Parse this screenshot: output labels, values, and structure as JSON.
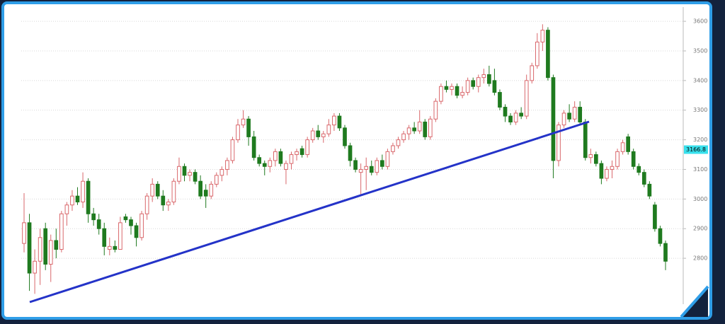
{
  "chart_data": {
    "type": "candlestick",
    "ylim": [
      2645,
      3648
    ],
    "yticks": [
      2800,
      2900,
      3000,
      3100,
      3200,
      3300,
      3400,
      3500,
      3600
    ],
    "grid": true,
    "up_color": "#d9676b",
    "down_color": "#1f7a1f",
    "last_price": 3166.8,
    "last_price_color": "#38e0ec",
    "ohlc": [
      [
        2850,
        3020,
        2820,
        2920
      ],
      [
        2920,
        2950,
        2690,
        2750
      ],
      [
        2750,
        2830,
        2680,
        2790
      ],
      [
        2790,
        2900,
        2710,
        2870
      ],
      [
        2900,
        2920,
        2760,
        2780
      ],
      [
        2780,
        2880,
        2720,
        2860
      ],
      [
        2860,
        2900,
        2800,
        2830
      ],
      [
        2830,
        2960,
        2820,
        2950
      ],
      [
        2950,
        2990,
        2910,
        2980
      ],
      [
        2980,
        3030,
        2960,
        3010
      ],
      [
        3010,
        3040,
        2980,
        2990
      ],
      [
        2990,
        3090,
        2970,
        3060
      ],
      [
        3060,
        3070,
        2920,
        2950
      ],
      [
        2950,
        2970,
        2910,
        2930
      ],
      [
        2930,
        2950,
        2880,
        2900
      ],
      [
        2900,
        2920,
        2810,
        2840
      ],
      [
        2830,
        2870,
        2810,
        2840
      ],
      [
        2840,
        2860,
        2820,
        2830
      ],
      [
        2830,
        2940,
        2830,
        2920
      ],
      [
        2940,
        2950,
        2920,
        2930
      ],
      [
        2930,
        2940,
        2880,
        2910
      ],
      [
        2910,
        2920,
        2840,
        2870
      ],
      [
        2870,
        2960,
        2860,
        2950
      ],
      [
        2950,
        3020,
        2930,
        3010
      ],
      [
        3010,
        3070,
        2990,
        3050
      ],
      [
        3050,
        3060,
        3000,
        3010
      ],
      [
        3010,
        3030,
        2960,
        2980
      ],
      [
        2980,
        3000,
        2960,
        2990
      ],
      [
        2990,
        3070,
        2980,
        3060
      ],
      [
        3060,
        3140,
        3050,
        3110
      ],
      [
        3110,
        3120,
        3060,
        3080
      ],
      [
        3080,
        3100,
        3060,
        3090
      ],
      [
        3090,
        3100,
        3050,
        3060
      ],
      [
        3060,
        3080,
        3000,
        3010
      ],
      [
        3030,
        3050,
        2970,
        3010
      ],
      [
        3010,
        3060,
        3000,
        3050
      ],
      [
        3050,
        3090,
        3040,
        3080
      ],
      [
        3080,
        3110,
        3060,
        3100
      ],
      [
        3100,
        3140,
        3080,
        3130
      ],
      [
        3130,
        3210,
        3120,
        3200
      ],
      [
        3200,
        3270,
        3190,
        3250
      ],
      [
        3250,
        3300,
        3240,
        3270
      ],
      [
        3270,
        3280,
        3180,
        3210
      ],
      [
        3210,
        3230,
        3130,
        3140
      ],
      [
        3140,
        3150,
        3110,
        3120
      ],
      [
        3120,
        3130,
        3080,
        3110
      ],
      [
        3110,
        3140,
        3090,
        3130
      ],
      [
        3130,
        3170,
        3110,
        3160
      ],
      [
        3160,
        3170,
        3110,
        3120
      ],
      [
        3100,
        3130,
        3050,
        3120
      ],
      [
        3120,
        3160,
        3100,
        3150
      ],
      [
        3150,
        3170,
        3130,
        3160
      ],
      [
        3170,
        3180,
        3140,
        3150
      ],
      [
        3150,
        3210,
        3140,
        3200
      ],
      [
        3200,
        3240,
        3190,
        3230
      ],
      [
        3230,
        3250,
        3200,
        3210
      ],
      [
        3210,
        3230,
        3190,
        3220
      ],
      [
        3220,
        3270,
        3210,
        3250
      ],
      [
        3250,
        3290,
        3230,
        3280
      ],
      [
        3280,
        3290,
        3230,
        3240
      ],
      [
        3240,
        3250,
        3170,
        3180
      ],
      [
        3180,
        3190,
        3110,
        3130
      ],
      [
        3130,
        3140,
        3090,
        3100
      ],
      [
        3090,
        3120,
        3010,
        3100
      ],
      [
        3100,
        3140,
        3030,
        3110
      ],
      [
        3110,
        3130,
        3080,
        3090
      ],
      [
        3090,
        3140,
        3080,
        3130
      ],
      [
        3130,
        3150,
        3100,
        3110
      ],
      [
        3110,
        3170,
        3100,
        3160
      ],
      [
        3160,
        3190,
        3150,
        3180
      ],
      [
        3180,
        3210,
        3170,
        3200
      ],
      [
        3200,
        3230,
        3190,
        3220
      ],
      [
        3220,
        3250,
        3200,
        3240
      ],
      [
        3240,
        3260,
        3220,
        3230
      ],
      [
        3230,
        3300,
        3220,
        3260
      ],
      [
        3260,
        3270,
        3200,
        3210
      ],
      [
        3210,
        3280,
        3200,
        3270
      ],
      [
        3270,
        3340,
        3260,
        3330
      ],
      [
        3330,
        3390,
        3320,
        3380
      ],
      [
        3380,
        3400,
        3360,
        3370
      ],
      [
        3370,
        3390,
        3350,
        3380
      ],
      [
        3380,
        3390,
        3340,
        3350
      ],
      [
        3350,
        3380,
        3340,
        3360
      ],
      [
        3360,
        3410,
        3350,
        3400
      ],
      [
        3400,
        3410,
        3370,
        3380
      ],
      [
        3380,
        3420,
        3360,
        3410
      ],
      [
        3410,
        3440,
        3390,
        3420
      ],
      [
        3420,
        3450,
        3380,
        3390
      ],
      [
        3400,
        3440,
        3350,
        3360
      ],
      [
        3360,
        3370,
        3300,
        3310
      ],
      [
        3310,
        3320,
        3260,
        3280
      ],
      [
        3280,
        3290,
        3250,
        3260
      ],
      [
        3260,
        3300,
        3250,
        3290
      ],
      [
        3290,
        3310,
        3270,
        3280
      ],
      [
        3280,
        3420,
        3270,
        3400
      ],
      [
        3400,
        3460,
        3390,
        3450
      ],
      [
        3450,
        3560,
        3440,
        3530
      ],
      [
        3530,
        3590,
        3500,
        3570
      ],
      [
        3570,
        3580,
        3400,
        3410
      ],
      [
        3410,
        3420,
        3070,
        3130
      ],
      [
        3130,
        3260,
        3110,
        3250
      ],
      [
        3250,
        3300,
        3240,
        3290
      ],
      [
        3290,
        3320,
        3260,
        3270
      ],
      [
        3270,
        3330,
        3260,
        3310
      ],
      [
        3310,
        3330,
        3250,
        3260
      ],
      [
        3260,
        3270,
        3130,
        3140
      ],
      [
        3140,
        3170,
        3120,
        3150
      ],
      [
        3150,
        3160,
        3110,
        3120
      ],
      [
        3120,
        3130,
        3050,
        3070
      ],
      [
        3070,
        3110,
        3060,
        3100
      ],
      [
        3100,
        3130,
        3070,
        3110
      ],
      [
        3110,
        3170,
        3100,
        3160
      ],
      [
        3160,
        3200,
        3150,
        3190
      ],
      [
        3210,
        3220,
        3150,
        3160
      ],
      [
        3160,
        3170,
        3100,
        3110
      ],
      [
        3110,
        3120,
        3080,
        3090
      ],
      [
        3090,
        3100,
        3040,
        3050
      ],
      [
        3050,
        3060,
        3000,
        3010
      ],
      [
        2980,
        2990,
        2890,
        2900
      ],
      [
        2900,
        2910,
        2840,
        2850
      ],
      [
        2850,
        2860,
        2760,
        2790
      ]
    ]
  }
}
